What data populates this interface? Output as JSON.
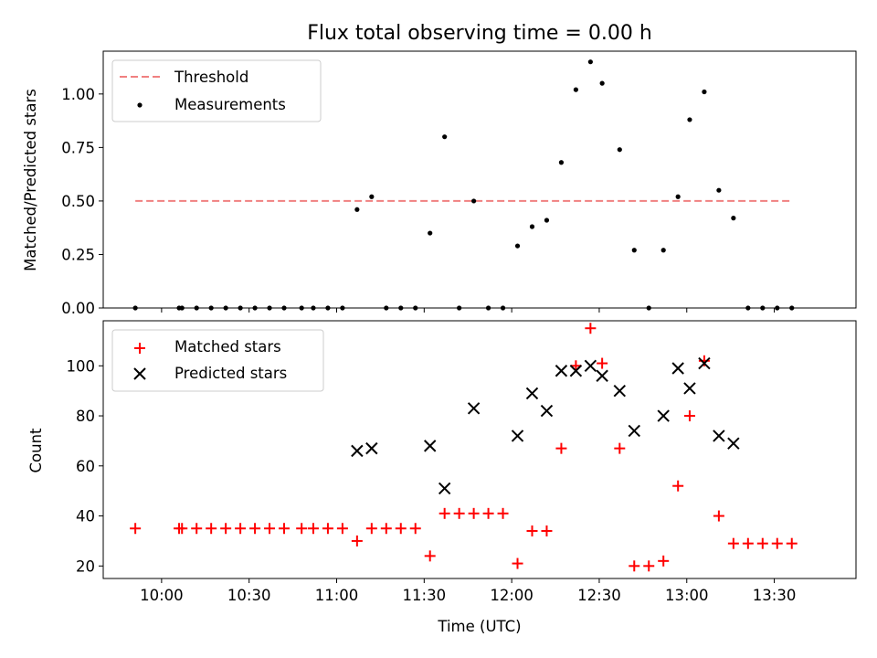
{
  "chart_data": {
    "type": "scatter",
    "title": "Flux total observing time = 0.00 h",
    "xlabel": "Time (UTC)",
    "x_unit": "time (HH:MM)",
    "x_ticks": [
      "10:00",
      "10:30",
      "11:00",
      "11:30",
      "12:00",
      "12:30",
      "13:00",
      "13:30"
    ],
    "xlim": [
      "09:40",
      "13:58"
    ],
    "panels": [
      {
        "ylabel": "Matched/Predicted stars",
        "ylim": [
          0,
          1.2
        ],
        "y_ticks": [
          "0.00",
          "0.25",
          "0.50",
          "0.75",
          "1.00"
        ],
        "legend_position": "upper left",
        "threshold": {
          "name": "Threshold",
          "value": 0.5,
          "x_start": "09:51",
          "x_end": "13:36",
          "color": "#f08080"
        },
        "series": [
          {
            "name": "Measurements",
            "marker": "dot",
            "color": "#000000",
            "points": [
              [
                "09:51",
                0
              ],
              [
                "10:06",
                0
              ],
              [
                "10:07",
                0
              ],
              [
                "10:12",
                0
              ],
              [
                "10:17",
                0
              ],
              [
                "10:22",
                0
              ],
              [
                "10:27",
                0
              ],
              [
                "10:32",
                0
              ],
              [
                "10:37",
                0
              ],
              [
                "10:42",
                0
              ],
              [
                "10:48",
                0
              ],
              [
                "10:52",
                0
              ],
              [
                "10:57",
                0
              ],
              [
                "11:02",
                0
              ],
              [
                "11:07",
                0.46
              ],
              [
                "11:12",
                0.52
              ],
              [
                "11:17",
                0
              ],
              [
                "11:22",
                0
              ],
              [
                "11:27",
                0
              ],
              [
                "11:32",
                0.35
              ],
              [
                "11:37",
                0.8
              ],
              [
                "11:42",
                0
              ],
              [
                "11:47",
                0.5
              ],
              [
                "11:52",
                0
              ],
              [
                "11:57",
                0
              ],
              [
                "12:02",
                0.29
              ],
              [
                "12:07",
                0.38
              ],
              [
                "12:12",
                0.41
              ],
              [
                "12:17",
                0.68
              ],
              [
                "12:22",
                1.02
              ],
              [
                "12:27",
                1.15
              ],
              [
                "12:31",
                1.05
              ],
              [
                "12:37",
                0.74
              ],
              [
                "12:42",
                0.27
              ],
              [
                "12:47",
                0
              ],
              [
                "12:52",
                0.27
              ],
              [
                "12:57",
                0.52
              ],
              [
                "13:01",
                0.88
              ],
              [
                "13:06",
                1.01
              ],
              [
                "13:11",
                0.55
              ],
              [
                "13:16",
                0.42
              ],
              [
                "13:21",
                0
              ],
              [
                "13:26",
                0
              ],
              [
                "13:31",
                0
              ],
              [
                "13:36",
                0
              ]
            ]
          }
        ]
      },
      {
        "ylabel": "Count",
        "ylim": [
          15,
          118
        ],
        "y_ticks": [
          "20",
          "40",
          "60",
          "80",
          "100"
        ],
        "legend_position": "upper left",
        "series": [
          {
            "name": "Matched stars",
            "marker": "plus",
            "color": "#ff0000",
            "points": [
              [
                "09:51",
                35
              ],
              [
                "10:06",
                35
              ],
              [
                "10:07",
                35
              ],
              [
                "10:12",
                35
              ],
              [
                "10:17",
                35
              ],
              [
                "10:22",
                35
              ],
              [
                "10:27",
                35
              ],
              [
                "10:32",
                35
              ],
              [
                "10:37",
                35
              ],
              [
                "10:42",
                35
              ],
              [
                "10:48",
                35
              ],
              [
                "10:52",
                35
              ],
              [
                "10:57",
                35
              ],
              [
                "11:02",
                35
              ],
              [
                "11:07",
                30
              ],
              [
                "11:12",
                35
              ],
              [
                "11:17",
                35
              ],
              [
                "11:22",
                35
              ],
              [
                "11:27",
                35
              ],
              [
                "11:32",
                24
              ],
              [
                "11:37",
                41
              ],
              [
                "11:42",
                41
              ],
              [
                "11:47",
                41
              ],
              [
                "11:52",
                41
              ],
              [
                "11:57",
                41
              ],
              [
                "12:02",
                21
              ],
              [
                "12:07",
                34
              ],
              [
                "12:12",
                34
              ],
              [
                "12:17",
                67
              ],
              [
                "12:22",
                100
              ],
              [
                "12:27",
                115
              ],
              [
                "12:31",
                101
              ],
              [
                "12:37",
                67
              ],
              [
                "12:42",
                20
              ],
              [
                "12:47",
                20
              ],
              [
                "12:52",
                22
              ],
              [
                "12:57",
                52
              ],
              [
                "13:01",
                80
              ],
              [
                "13:06",
                102
              ],
              [
                "13:11",
                40
              ],
              [
                "13:16",
                29
              ],
              [
                "13:21",
                29
              ],
              [
                "13:26",
                29
              ],
              [
                "13:31",
                29
              ],
              [
                "13:36",
                29
              ]
            ]
          },
          {
            "name": "Predicted stars",
            "marker": "x",
            "color": "#000000",
            "points": [
              [
                "11:07",
                66
              ],
              [
                "11:12",
                67
              ],
              [
                "11:32",
                68
              ],
              [
                "11:37",
                51
              ],
              [
                "11:47",
                83
              ],
              [
                "12:02",
                72
              ],
              [
                "12:07",
                89
              ],
              [
                "12:12",
                82
              ],
              [
                "12:17",
                98
              ],
              [
                "12:22",
                98
              ],
              [
                "12:27",
                100
              ],
              [
                "12:31",
                96
              ],
              [
                "12:37",
                90
              ],
              [
                "12:42",
                74
              ],
              [
                "12:52",
                80
              ],
              [
                "12:57",
                99
              ],
              [
                "13:01",
                91
              ],
              [
                "13:06",
                101
              ],
              [
                "13:11",
                72
              ],
              [
                "13:16",
                69
              ]
            ]
          }
        ]
      }
    ]
  }
}
